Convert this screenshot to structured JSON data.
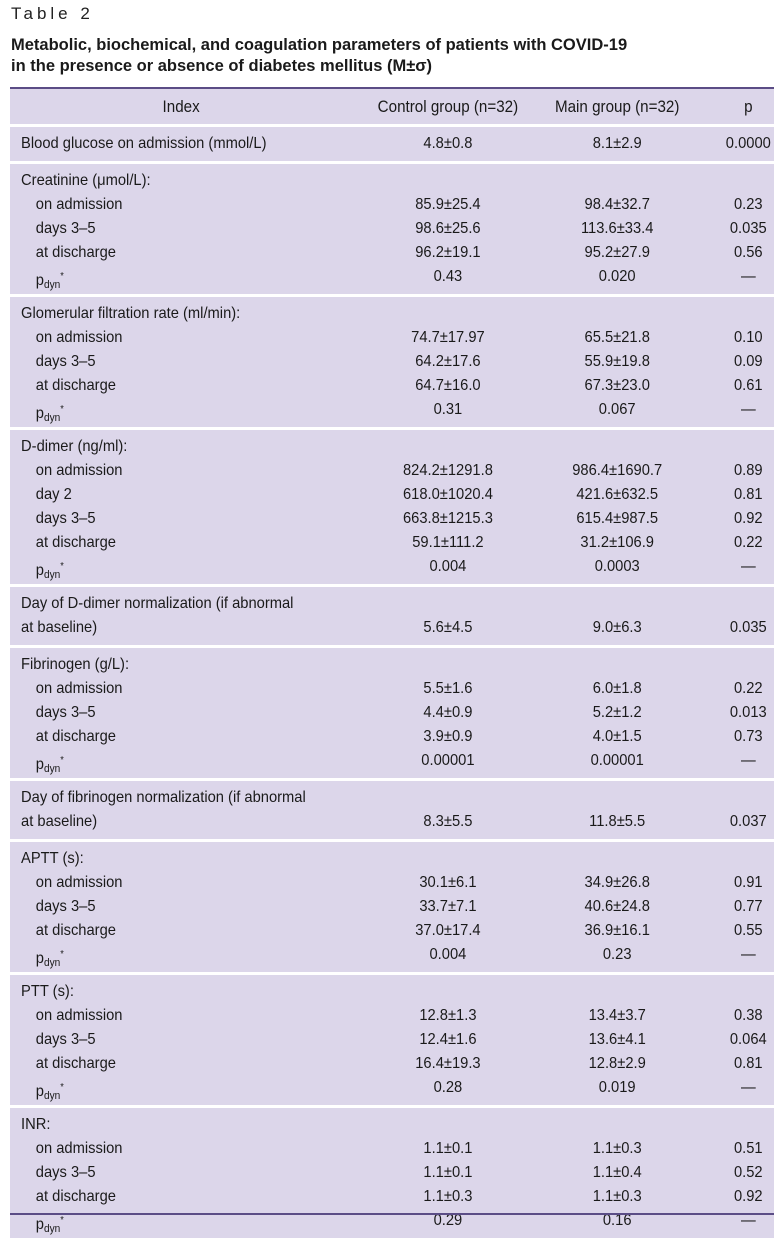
{
  "table_label": "Table 2",
  "caption": [
    "Metabolic, biochemical, and coagulation parameters of patients with COVID-19",
    "in the presence or absence of diabetes mellitus (M±σ)"
  ],
  "columns": [
    "Index",
    "Control group (n=32)",
    "Main group (n=32)",
    "p"
  ],
  "pdyn": {
    "base": "p",
    "sub": "dyn",
    "sup": "*"
  },
  "groups": [
    {
      "rows": [
        {
          "label": "Blood glucose on admission (mmol/L)",
          "control": "4.8±0.8",
          "main": "8.1±2.9",
          "p": "0.0000"
        }
      ]
    },
    {
      "rows": [
        {
          "label": "Creatinine (μmol/L):",
          "control": "",
          "main": "",
          "p": ""
        },
        {
          "label": "on admission",
          "indent": true,
          "control": "85.9±25.4",
          "main": "98.4±32.7",
          "p": "0.23"
        },
        {
          "label": "days 3–5",
          "indent": true,
          "control": "98.6±25.6",
          "main": "113.6±33.4",
          "p": "0.035"
        },
        {
          "label": "at discharge",
          "indent": true,
          "control": "96.2±19.1",
          "main": "95.2±27.9",
          "p": "0.56"
        },
        {
          "pdyn": true,
          "indent": true,
          "control": "0.43",
          "main": "0.020",
          "p": "—"
        }
      ]
    },
    {
      "rows": [
        {
          "label": "Glomerular filtration rate (ml/min):",
          "control": "",
          "main": "",
          "p": ""
        },
        {
          "label": "on admission",
          "indent": true,
          "control": "74.7±17.97",
          "main": "65.5±21.8",
          "p": "0.10"
        },
        {
          "label": "days 3–5",
          "indent": true,
          "control": "64.2±17.6",
          "main": "55.9±19.8",
          "p": "0.09"
        },
        {
          "label": "at discharge",
          "indent": true,
          "control": "64.7±16.0",
          "main": "67.3±23.0",
          "p": "0.61"
        },
        {
          "pdyn": true,
          "indent": true,
          "control": "0.31",
          "main": "0.067",
          "p": "—"
        }
      ]
    },
    {
      "rows": [
        {
          "label": "D-dimer (ng/ml):",
          "control": "",
          "main": "",
          "p": ""
        },
        {
          "label": "on admission",
          "indent": true,
          "control": "824.2±1291.8",
          "main": "986.4±1690.7",
          "p": "0.89"
        },
        {
          "label": "day 2",
          "indent": true,
          "control": "618.0±1020.4",
          "main": "421.6±632.5",
          "p": "0.81"
        },
        {
          "label": "days 3–5",
          "indent": true,
          "control": "663.8±1215.3",
          "main": "615.4±987.5",
          "p": "0.92"
        },
        {
          "label": "at discharge",
          "indent": true,
          "control": "59.1±111.2",
          "main": "31.2±106.9",
          "p": "0.22"
        },
        {
          "pdyn": true,
          "indent": true,
          "control": "0.004",
          "main": "0.0003",
          "p": "—"
        }
      ]
    },
    {
      "rows": [
        {
          "label": "Day of D-dimer normalization (if abnormal",
          "control": "",
          "main": "",
          "p": ""
        },
        {
          "label": "at baseline)",
          "control": "5.6±4.5",
          "main": "9.0±6.3",
          "p": "0.035"
        }
      ]
    },
    {
      "rows": [
        {
          "label": "Fibrinogen (g/L):",
          "control": "",
          "main": "",
          "p": ""
        },
        {
          "label": "on admission",
          "indent": true,
          "control": "5.5±1.6",
          "main": "6.0±1.8",
          "p": "0.22"
        },
        {
          "label": "days 3–5",
          "indent": true,
          "control": "4.4±0.9",
          "main": "5.2±1.2",
          "p": "0.013"
        },
        {
          "label": "at discharge",
          "indent": true,
          "control": "3.9±0.9",
          "main": "4.0±1.5",
          "p": "0.73"
        },
        {
          "pdyn": true,
          "indent": true,
          "control": "0.00001",
          "main": "0.00001",
          "p": "—"
        }
      ]
    },
    {
      "rows": [
        {
          "label": "Day of fibrinogen normalization (if abnormal",
          "control": "",
          "main": "",
          "p": ""
        },
        {
          "label": "at baseline)",
          "control": "8.3±5.5",
          "main": "11.8±5.5",
          "p": "0.037"
        }
      ]
    },
    {
      "rows": [
        {
          "label": "APTT (s):",
          "control": "",
          "main": "",
          "p": ""
        },
        {
          "label": "on admission",
          "indent": true,
          "control": "30.1±6.1",
          "main": "34.9±26.8",
          "p": "0.91"
        },
        {
          "label": "days 3–5",
          "indent": true,
          "control": "33.7±7.1",
          "main": "40.6±24.8",
          "p": "0.77"
        },
        {
          "label": "at discharge",
          "indent": true,
          "control": "37.0±17.4",
          "main": "36.9±16.1",
          "p": "0.55"
        },
        {
          "pdyn": true,
          "indent": true,
          "control": "0.004",
          "main": "0.23",
          "p": "—"
        }
      ]
    },
    {
      "rows": [
        {
          "label": "PTT (s):",
          "control": "",
          "main": "",
          "p": ""
        },
        {
          "label": "on admission",
          "indent": true,
          "control": "12.8±1.3",
          "main": "13.4±3.7",
          "p": "0.38"
        },
        {
          "label": "days 3–5",
          "indent": true,
          "control": "12.4±1.6",
          "main": "13.6±4.1",
          "p": "0.064"
        },
        {
          "label": "at discharge",
          "indent": true,
          "control": "16.4±19.3",
          "main": "12.8±2.9",
          "p": "0.81"
        },
        {
          "pdyn": true,
          "indent": true,
          "control": "0.28",
          "main": "0.019",
          "p": "—"
        }
      ]
    },
    {
      "rows": [
        {
          "label": "INR:",
          "control": "",
          "main": "",
          "p": ""
        },
        {
          "label": "on admission",
          "indent": true,
          "control": "1.1±0.1",
          "main": "1.1±0.3",
          "p": "0.51"
        },
        {
          "label": "days 3–5",
          "indent": true,
          "control": "1.1±0.1",
          "main": "1.1±0.4",
          "p": "0.52"
        },
        {
          "label": "at discharge",
          "indent": true,
          "control": "1.1±0.3",
          "main": "1.1±0.3",
          "p": "0.92"
        },
        {
          "pdyn": true,
          "indent": true,
          "control": "0.29",
          "main": "0.16",
          "p": "—"
        }
      ]
    }
  ]
}
